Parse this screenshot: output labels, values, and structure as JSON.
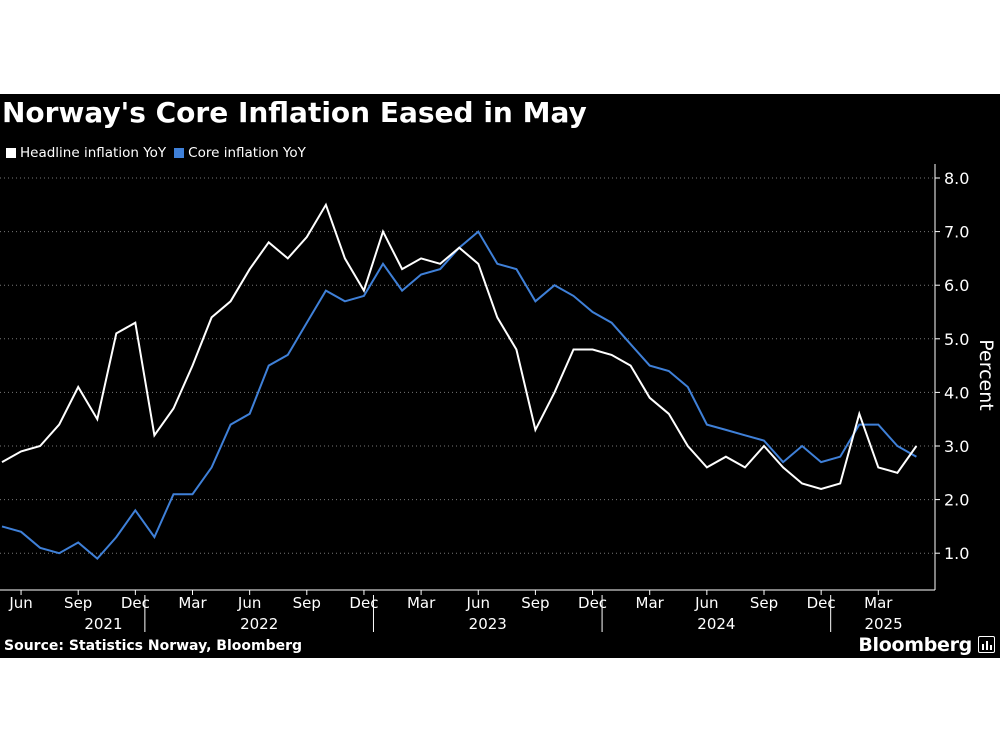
{
  "title": "Norway's Core Inflation Eased in May",
  "legend": [
    {
      "label": "Headline inflation YoY",
      "color": "#ffffff"
    },
    {
      "label": "Core inflation YoY",
      "color": "#3f80d8"
    }
  ],
  "source": "Source: Statistics Norway, Bloomberg",
  "brand": "Bloomberg",
  "colors": {
    "background": "#000000",
    "headline": "#ffffff",
    "core": "#3f80d8",
    "axis": "#ffffff",
    "grid": "#777777"
  },
  "chart_data": {
    "type": "line",
    "title": "Norway's Core Inflation Eased in May",
    "ylabel": "Percent",
    "xlabel": "",
    "ylim": [
      0.3,
      8.2
    ],
    "yticks": [
      "1.0",
      "2.0",
      "3.0",
      "4.0",
      "5.0",
      "6.0",
      "7.0",
      "8.0"
    ],
    "y_axis_side": "right",
    "grid": "horizontal dotted",
    "legend_position": "top-left",
    "x_month_ticks": [
      "Jun",
      "Sep",
      "Dec",
      "Mar",
      "Jun",
      "Sep",
      "Dec",
      "Mar",
      "Jun",
      "Sep",
      "Dec",
      "Mar",
      "Jun",
      "Sep",
      "Dec",
      "Mar"
    ],
    "x_year_labels": [
      "2021",
      "2022",
      "2023",
      "2024",
      "2025"
    ],
    "x": [
      "2021-05",
      "2021-06",
      "2021-07",
      "2021-08",
      "2021-09",
      "2021-10",
      "2021-11",
      "2021-12",
      "2022-01",
      "2022-02",
      "2022-03",
      "2022-04",
      "2022-05",
      "2022-06",
      "2022-07",
      "2022-08",
      "2022-09",
      "2022-10",
      "2022-11",
      "2022-12",
      "2023-01",
      "2023-02",
      "2023-03",
      "2023-04",
      "2023-05",
      "2023-06",
      "2023-07",
      "2023-08",
      "2023-09",
      "2023-10",
      "2023-11",
      "2023-12",
      "2024-01",
      "2024-02",
      "2024-03",
      "2024-04",
      "2024-05",
      "2024-06",
      "2024-07",
      "2024-08",
      "2024-09",
      "2024-10",
      "2024-11",
      "2024-12",
      "2025-01",
      "2025-02",
      "2025-03",
      "2025-04",
      "2025-05"
    ],
    "series": [
      {
        "name": "Headline inflation YoY",
        "values": [
          2.7,
          2.9,
          3.0,
          3.4,
          4.1,
          3.5,
          5.1,
          5.3,
          3.2,
          3.7,
          4.5,
          5.4,
          5.7,
          6.3,
          6.8,
          6.5,
          6.9,
          7.5,
          6.5,
          5.9,
          7.0,
          6.3,
          6.5,
          6.4,
          6.7,
          6.4,
          5.4,
          4.8,
          3.3,
          4.0,
          4.8,
          4.8,
          4.7,
          4.5,
          3.9,
          3.6,
          3.0,
          2.6,
          2.8,
          2.6,
          3.0,
          2.6,
          2.3,
          2.2,
          2.3,
          3.6,
          2.6,
          2.5,
          3.0
        ]
      },
      {
        "name": "Core inflation YoY",
        "values": [
          1.5,
          1.4,
          1.1,
          1.0,
          1.2,
          0.9,
          1.3,
          1.8,
          1.3,
          2.1,
          2.1,
          2.6,
          3.4,
          3.6,
          4.5,
          4.7,
          5.3,
          5.9,
          5.7,
          5.8,
          6.4,
          5.9,
          6.2,
          6.3,
          6.7,
          7.0,
          6.4,
          6.3,
          5.7,
          6.0,
          5.8,
          5.5,
          5.3,
          4.9,
          4.5,
          4.4,
          4.1,
          3.4,
          3.3,
          3.2,
          3.1,
          2.7,
          3.0,
          2.7,
          2.8,
          3.4,
          3.4,
          3.0,
          2.8
        ]
      }
    ]
  }
}
